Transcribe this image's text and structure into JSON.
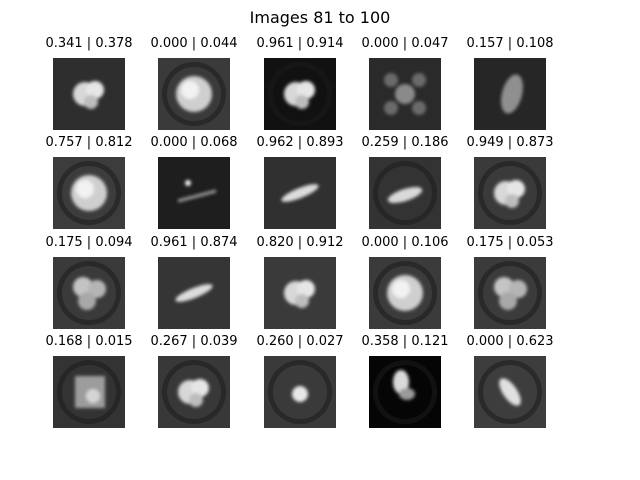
{
  "figure": {
    "title": "Images 81 to 100",
    "images": [
      {
        "label": "0.341 | 0.378",
        "bg": "#2e2e2e",
        "ring": false,
        "blob": "lumpy"
      },
      {
        "label": "0.000 | 0.044",
        "bg": "#3a3a3a",
        "ring": true,
        "blob": "disc"
      },
      {
        "label": "0.961 | 0.914",
        "bg": "#111111",
        "ring": true,
        "blob": "lumpy"
      },
      {
        "label": "0.000 | 0.047",
        "bg": "#2a2a2a",
        "ring": false,
        "blob": "cross"
      },
      {
        "label": "0.157 | 0.108",
        "bg": "#262626",
        "ring": false,
        "blob": "tall"
      },
      {
        "label": "0.757 | 0.812",
        "bg": "#3c3c3c",
        "ring": true,
        "blob": "disc"
      },
      {
        "label": "0.000 | 0.068",
        "bg": "#1e1e1e",
        "ring": false,
        "blob": "streak"
      },
      {
        "label": "0.962 | 0.893",
        "bg": "#303030",
        "ring": false,
        "blob": "rod"
      },
      {
        "label": "0.259 | 0.186",
        "bg": "#333333",
        "ring": true,
        "blob": "bar"
      },
      {
        "label": "0.949 | 0.873",
        "bg": "#3a3a3a",
        "ring": true,
        "blob": "lumpy"
      },
      {
        "label": "0.175 | 0.094",
        "bg": "#3a3a3a",
        "ring": true,
        "blob": "clover"
      },
      {
        "label": "0.961 | 0.874",
        "bg": "#353535",
        "ring": false,
        "blob": "rod"
      },
      {
        "label": "0.820 | 0.912",
        "bg": "#3a3a3a",
        "ring": false,
        "blob": "lumpy"
      },
      {
        "label": "0.000 | 0.106",
        "bg": "#3b3b3b",
        "ring": true,
        "blob": "disc"
      },
      {
        "label": "0.175 | 0.053",
        "bg": "#3b3b3b",
        "ring": true,
        "blob": "clover"
      },
      {
        "label": "0.168 | 0.015",
        "bg": "#333333",
        "ring": true,
        "blob": "square"
      },
      {
        "label": "0.267 | 0.039",
        "bg": "#383838",
        "ring": true,
        "blob": "lumpy"
      },
      {
        "label": "0.260 | 0.027",
        "bg": "#3a3a3a",
        "ring": true,
        "blob": "small"
      },
      {
        "label": "0.358 | 0.121",
        "bg": "#050505",
        "ring": true,
        "blob": "smear"
      },
      {
        "label": "0.000 | 0.623",
        "bg": "#3d3d3d",
        "ring": true,
        "blob": "diag"
      }
    ]
  }
}
